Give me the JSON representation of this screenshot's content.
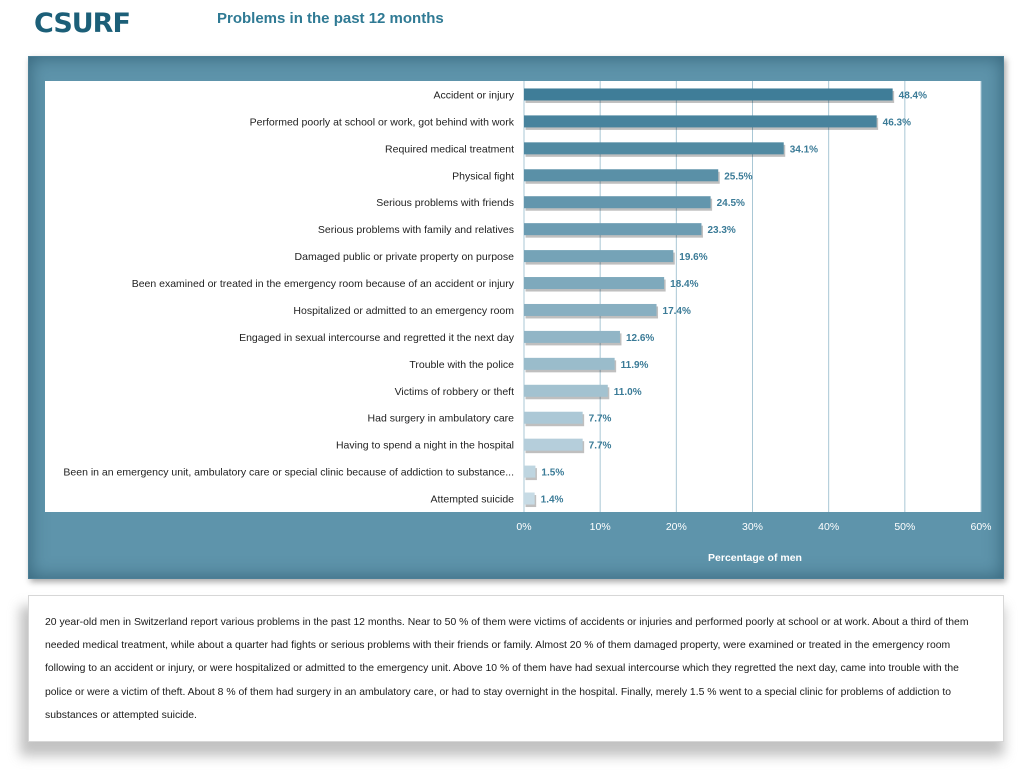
{
  "header": {
    "logo_text": "CSURF",
    "title": "Problems in the past 12 months"
  },
  "colors": {
    "frame": "#5e94ab",
    "plot_bg": "#ffffff",
    "bar_top": "#3f7d98",
    "bar_bottom": "#c7dbe5",
    "label": "#3b7b97",
    "axis_text": "#ffffff"
  },
  "chart_data": {
    "type": "bar",
    "orientation": "horizontal",
    "title": "",
    "xlabel": "Percentage of men",
    "ylabel": "",
    "xlim": [
      0,
      60
    ],
    "xticks": [
      "0%",
      "10%",
      "20%",
      "30%",
      "40%",
      "50%",
      "60%"
    ],
    "grid": "vertical",
    "categories": [
      "Accident or injury",
      "Performed poorly at school or work, got behind with work",
      "Required medical treatment",
      "Physical fight",
      "Serious problems with friends",
      "Serious problems with family and relatives",
      "Damaged public or private property on purpose",
      "Been examined or treated in the emergency room because of an accident or injury",
      "Hospitalized or admitted to an emergency room",
      "Engaged in sexual intercourse and regretted it the next day",
      "Trouble with the police",
      "Victims of robbery or theft",
      "Had surgery in ambulatory care",
      "Having to spend a night in the hospital",
      "Been in an emergency unit, ambulatory care or special clinic because of addiction to substance...",
      "Attempted suicide"
    ],
    "values": [
      48.4,
      46.3,
      34.1,
      25.5,
      24.5,
      23.3,
      19.6,
      18.4,
      17.4,
      12.6,
      11.9,
      11.0,
      7.7,
      7.7,
      1.5,
      1.4
    ],
    "data_labels": [
      "48.4%",
      "46.3%",
      "34.1%",
      "25.5%",
      "24.5%",
      "23.3%",
      "19.6%",
      "18.4%",
      "17.4%",
      "12.6%",
      "11.9%",
      "11.0%",
      "7.7%",
      "7.7%",
      "1.5%",
      "1.4%"
    ]
  },
  "summary": {
    "text": "20 year-old men in Switzerland report various problems in the past 12 months. Near to 50 % of them were victims of accidents or injuries and performed poorly at school or at work. About a third of them needed medical treatment, while about a quarter had fights or serious problems with their friends or family. Almost 20 % of them damaged property, were examined or treated in the emergency room following to an accident or injury, or were hospitalized or admitted to the emergency unit. Above 10 % of them have had sexual intercourse which they regretted the next day, came into trouble with the police or were a victim of theft. About 8 % of them had surgery in an ambulatory care, or had to stay overnight in the hospital. Finally, merely 1.5 % went to a special clinic for problems of addiction to substances or attempted suicide."
  }
}
